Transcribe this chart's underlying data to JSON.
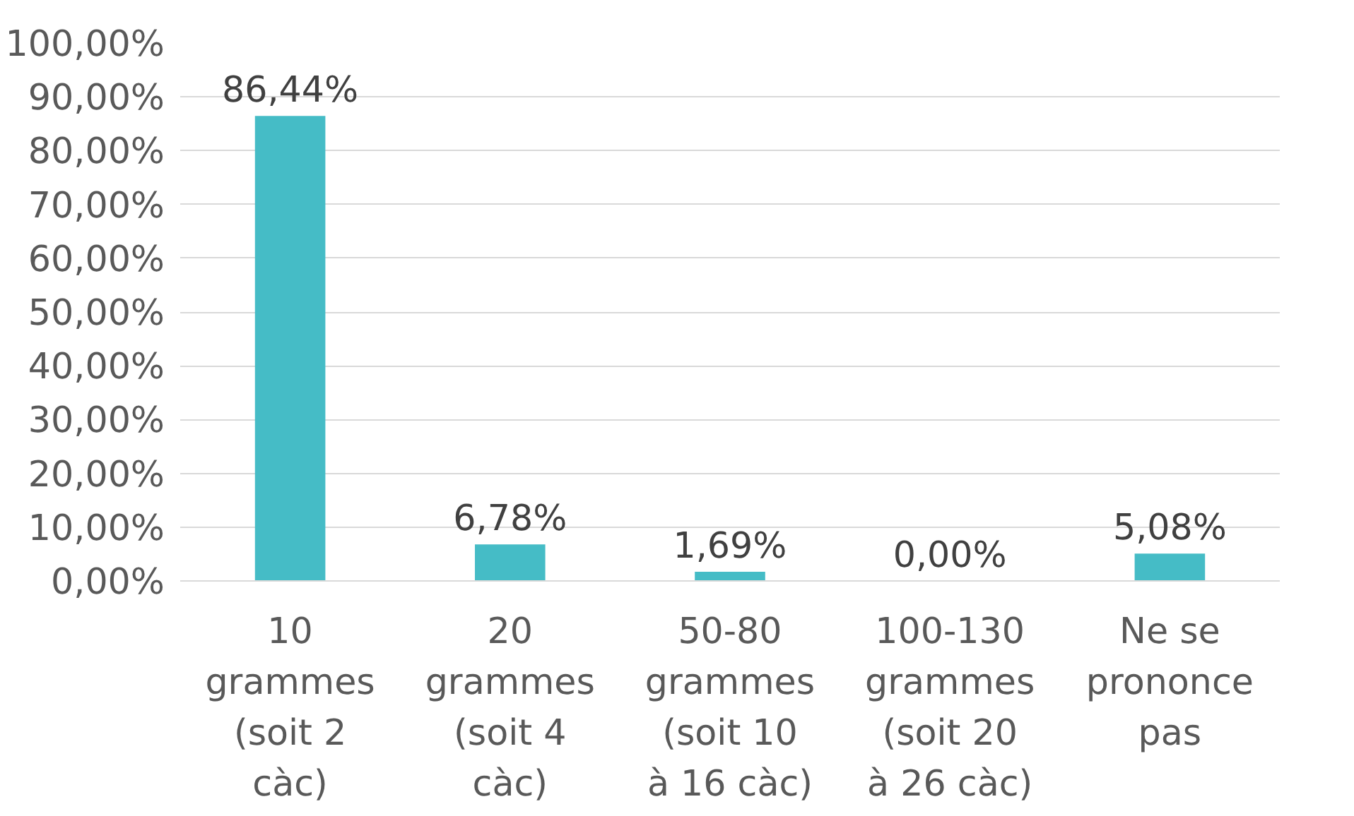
{
  "chart_data": {
    "type": "bar",
    "categories": [
      "10 grammes (soit 2 càc)",
      "20 grammes (soit 4 càc)",
      "50-80 grammes (soit 10 à 16 càc)",
      "100-130 grammes (soit 20 à 26 càc)",
      "Ne se prononce pas"
    ],
    "values": [
      86.44,
      6.78,
      1.69,
      0.0,
      5.08
    ],
    "value_labels": [
      "86,44%",
      "6,78%",
      "1,69%",
      "0,00%",
      "5,08%"
    ],
    "color": "#45bcc6",
    "ylim": [
      0,
      100
    ],
    "yticks": [
      {
        "value": 0,
        "label": "0,00%"
      },
      {
        "value": 10,
        "label": "10,00%"
      },
      {
        "value": 20,
        "label": "20,00%"
      },
      {
        "value": 30,
        "label": "30,00%"
      },
      {
        "value": 40,
        "label": "40,00%"
      },
      {
        "value": 50,
        "label": "50,00%"
      },
      {
        "value": 60,
        "label": "60,00%"
      },
      {
        "value": 70,
        "label": "70,00%"
      },
      {
        "value": 80,
        "label": "80,00%"
      },
      {
        "value": 90,
        "label": "90,00%"
      },
      {
        "value": 100,
        "label": "100,00%"
      }
    ],
    "grid": "y"
  }
}
